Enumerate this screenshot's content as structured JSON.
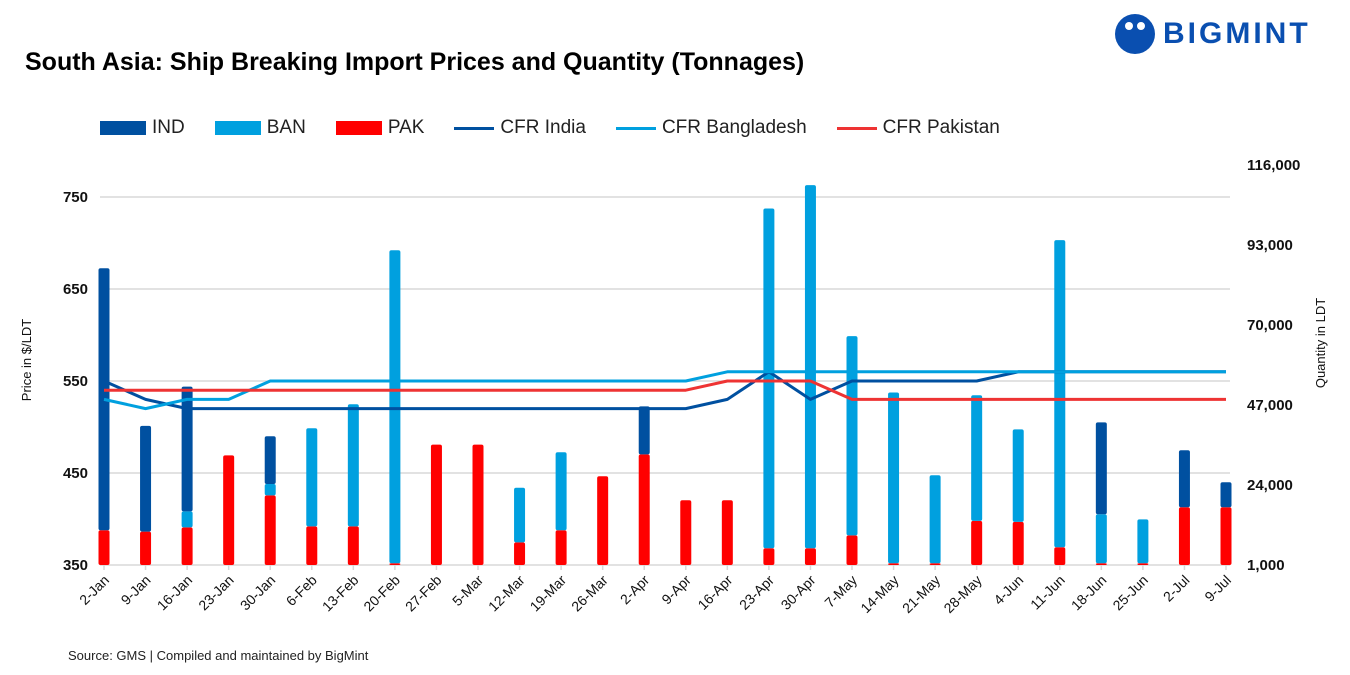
{
  "header": {
    "title": "South Asia: Ship Breaking Import Prices and Quantity (Tonnages)",
    "logo_text": "BIGMINT"
  },
  "footer": {
    "source": "Source: GMS | Compiled and maintained by BigMint"
  },
  "chart_data": {
    "type": "bar+line",
    "title": "South Asia: Ship Breaking Import Prices and Quantity (Tonnages)",
    "ylabel": "Price in $/LDT",
    "y2label": "Quantity in LDT",
    "ylim": [
      350,
      750
    ],
    "yticks": [
      "350",
      "450",
      "550",
      "650",
      "750"
    ],
    "y2lim": [
      1000,
      116000
    ],
    "y2ticks": [
      "1,000",
      "24,000",
      "47,000",
      "70,000",
      "93,000",
      "116,000"
    ],
    "grid": true,
    "legend_position": "top",
    "categories": [
      "2-Jan",
      "9-Jan",
      "16-Jan",
      "23-Jan",
      "30-Jan",
      "6-Feb",
      "13-Feb",
      "20-Feb",
      "27-Feb",
      "5-Mar",
      "12-Mar",
      "19-Mar",
      "26-Mar",
      "2-Apr",
      "9-Apr",
      "16-Apr",
      "23-Apr",
      "30-Apr",
      "7-May",
      "14-May",
      "21-May",
      "28-May",
      "4-Jun",
      "11-Jun",
      "18-Jun",
      "25-Jun",
      "2-Jul",
      "9-Jul"
    ],
    "bar_series": [
      {
        "name": "PAK",
        "color": "#ff0000",
        "axis": "right",
        "stacked": true,
        "values": [
          11000,
          10600,
          11800,
          32500,
          21000,
          12100,
          12100,
          1500,
          35600,
          35600,
          7500,
          11000,
          26500,
          32800,
          19600,
          19600,
          5800,
          5800,
          9500,
          1500,
          1500,
          13700,
          13400,
          6100,
          1500,
          1500,
          17600,
          17600
        ]
      },
      {
        "name": "BAN",
        "color": "#00a0df",
        "axis": "right",
        "stacked": true,
        "values": [
          0,
          0,
          4600,
          0,
          3300,
          28200,
          35100,
          90000,
          0,
          0,
          15700,
          22400,
          0,
          0,
          0,
          0,
          97700,
          104400,
          57300,
          49100,
          25300,
          36100,
          26600,
          88300,
          14100,
          12600,
          0,
          0
        ]
      },
      {
        "name": "IND",
        "color": "#0050a0",
        "axis": "right",
        "stacked": true,
        "values": [
          75300,
          30400,
          35900,
          0,
          13700,
          0,
          0,
          0,
          0,
          0,
          0,
          0,
          0,
          13800,
          0,
          0,
          0,
          0,
          0,
          0,
          0,
          0,
          0,
          0,
          26400,
          0,
          16400,
          7200
        ]
      }
    ],
    "line_series": [
      {
        "name": "CFR India",
        "color": "#0050a0",
        "axis": "left",
        "values": [
          550,
          530,
          520,
          520,
          520,
          520,
          520,
          520,
          520,
          520,
          520,
          520,
          520,
          520,
          520,
          530,
          560,
          530,
          550,
          550,
          550,
          550,
          560,
          560,
          560,
          560,
          560,
          560
        ]
      },
      {
        "name": "CFR Bangladesh",
        "color": "#00a0df",
        "axis": "left",
        "values": [
          530,
          520,
          530,
          530,
          550,
          550,
          550,
          550,
          550,
          550,
          550,
          550,
          550,
          550,
          550,
          560,
          560,
          560,
          560,
          560,
          560,
          560,
          560,
          560,
          560,
          560,
          560,
          560
        ]
      },
      {
        "name": "CFR Pakistan",
        "color": "#ee3333",
        "axis": "left",
        "values": [
          540,
          540,
          540,
          540,
          540,
          540,
          540,
          540,
          540,
          540,
          540,
          540,
          540,
          540,
          540,
          550,
          550,
          550,
          530,
          530,
          530,
          530,
          530,
          530,
          530,
          530,
          530,
          530
        ]
      }
    ]
  }
}
